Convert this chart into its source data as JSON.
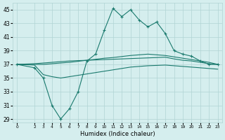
{
  "xlabel": "Humidex (Indice chaleur)",
  "background_color": "#d5eeee",
  "grid_color": "#b0d4d4",
  "line_color": "#1a7a6e",
  "ylim": [
    28.5,
    46
  ],
  "yticks": [
    29,
    31,
    33,
    35,
    37,
    39,
    41,
    43,
    45
  ],
  "xlim": [
    -0.5,
    23.5
  ],
  "xticks": [
    0,
    2,
    3,
    4,
    5,
    6,
    7,
    8,
    9,
    10,
    11,
    12,
    13,
    14,
    15,
    16,
    17,
    18,
    19,
    20,
    21,
    22,
    23
  ],
  "lines": [
    {
      "x": [
        0,
        2,
        3,
        4,
        5,
        6,
        7,
        8,
        9,
        10,
        11,
        12,
        13,
        14,
        15,
        16,
        17,
        18,
        19,
        20,
        21,
        22,
        23
      ],
      "y": [
        37,
        36.5,
        35,
        31,
        29,
        30.5,
        33,
        37.5,
        38.5,
        42,
        45.2,
        44,
        45,
        43.5,
        42.5,
        43.2,
        41.5,
        39,
        38.5,
        38.2,
        37.5,
        37.0,
        37.0
      ],
      "marker": "+"
    },
    {
      "x": [
        0,
        2,
        3,
        4,
        5,
        6,
        7,
        8,
        9,
        10,
        11,
        12,
        13,
        14,
        15,
        16,
        17,
        18,
        19,
        20,
        21,
        22,
        23
      ],
      "y": [
        37,
        37.1,
        37.2,
        37.3,
        37.4,
        37.5,
        37.55,
        37.6,
        37.65,
        37.7,
        37.75,
        37.8,
        37.85,
        37.9,
        37.95,
        38.0,
        38.05,
        37.8,
        37.6,
        37.5,
        37.3,
        37.1,
        37.0
      ],
      "marker": null
    },
    {
      "x": [
        0,
        2,
        3,
        4,
        5,
        6,
        7,
        8,
        9,
        10,
        11,
        12,
        13,
        14,
        15,
        16,
        17,
        18,
        19,
        20,
        21,
        22,
        23
      ],
      "y": [
        37,
        37.0,
        37.0,
        37.1,
        37.2,
        37.3,
        37.45,
        37.6,
        37.75,
        37.9,
        38.0,
        38.15,
        38.3,
        38.4,
        38.5,
        38.4,
        38.3,
        38.1,
        37.9,
        37.7,
        37.5,
        37.3,
        37.0
      ],
      "marker": null
    },
    {
      "x": [
        0,
        2,
        3,
        4,
        5,
        6,
        7,
        8,
        9,
        10,
        11,
        12,
        13,
        14,
        15,
        16,
        17,
        18,
        19,
        20,
        21,
        22,
        23
      ],
      "y": [
        37,
        36.9,
        35.5,
        35.2,
        35.0,
        35.2,
        35.4,
        35.6,
        35.8,
        36.0,
        36.2,
        36.4,
        36.6,
        36.7,
        36.8,
        36.85,
        36.9,
        36.8,
        36.7,
        36.6,
        36.5,
        36.4,
        36.3
      ],
      "marker": null
    }
  ]
}
